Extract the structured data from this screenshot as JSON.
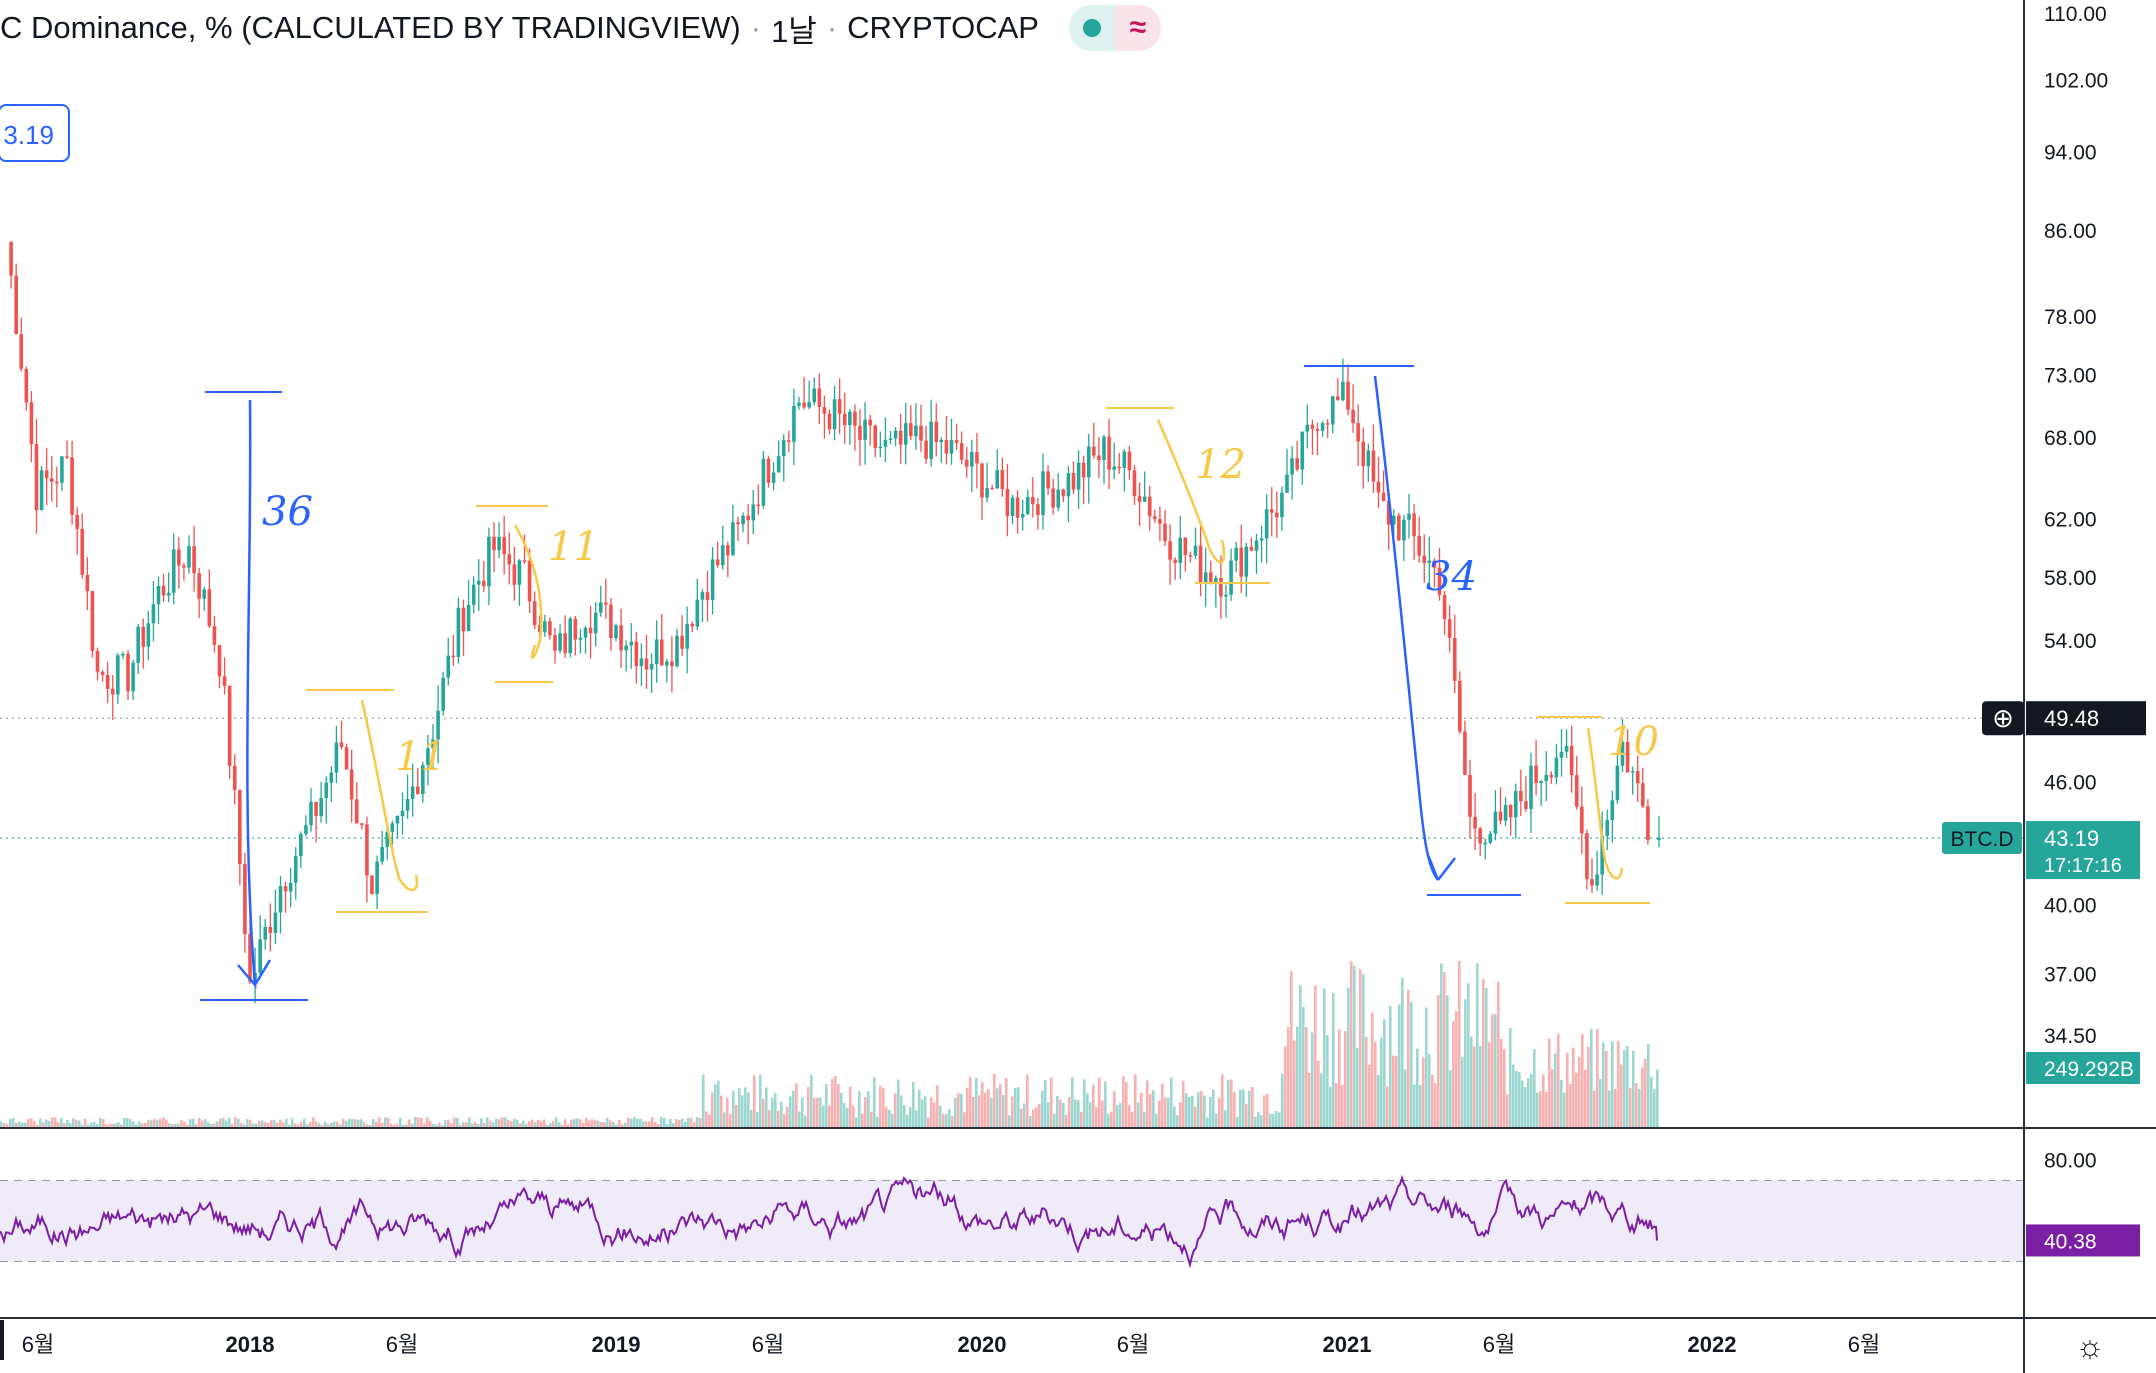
{
  "header": {
    "title": "C Dominance, % (CALCULATED BY TRADINGVIEW)",
    "interval": "1날",
    "exchange": "CRYPTOCAP"
  },
  "price_box": {
    "value": "3.19"
  },
  "crosshair": {
    "price": "49.48"
  },
  "current": {
    "symbol": "BTC.D",
    "price": "43.19",
    "countdown": "17:17:16"
  },
  "volume_label": "249.292B",
  "rsi_label": "40.38",
  "rsi_axis": [
    "80.00"
  ],
  "annotations": [
    "36",
    "11",
    "11",
    "12",
    "34",
    "10"
  ],
  "colors": {
    "up": "#26a69a",
    "down": "#ef5350",
    "rsi": "#7b1fa2",
    "blue": "#2962ff",
    "yellow": "#f7c948"
  },
  "chart_data": {
    "type": "candlestick",
    "title": "C Dominance, % (CALCULATED BY TRADINGVIEW)",
    "yscale": "log",
    "y_ticks": [
      "110.00",
      "102.00",
      "94.00",
      "86.00",
      "78.00",
      "73.00",
      "68.00",
      "62.00",
      "58.00",
      "54.00",
      "46.00",
      "40.00",
      "37.00",
      "34.50"
    ],
    "x_ticks": [
      "6월",
      "2018",
      "6월",
      "2019",
      "6월",
      "2020",
      "6월",
      "2021",
      "6월",
      "2022",
      "6월"
    ],
    "ylim": [
      33.5,
      110
    ],
    "series": [
      {
        "name": "BTC.D",
        "x": [
          "2017-05",
          "2017-06",
          "2017-07",
          "2017-08",
          "2017-09",
          "2017-10",
          "2017-11",
          "2017-12",
          "2018-01",
          "2018-02",
          "2018-03",
          "2018-04",
          "2018-05",
          "2018-06",
          "2018-07",
          "2018-08",
          "2018-09",
          "2018-10",
          "2018-11",
          "2018-12",
          "2019-01",
          "2019-02",
          "2019-03",
          "2019-04",
          "2019-05",
          "2019-06",
          "2019-07",
          "2019-08",
          "2019-09",
          "2019-10",
          "2019-11",
          "2019-12",
          "2020-01",
          "2020-02",
          "2020-03",
          "2020-04",
          "2020-05",
          "2020-06",
          "2020-07",
          "2020-08",
          "2020-09",
          "2020-10",
          "2020-11",
          "2020-12",
          "2021-01",
          "2021-02",
          "2021-03",
          "2021-04",
          "2021-05",
          "2021-06",
          "2021-07",
          "2021-08",
          "2021-09",
          "2021-10",
          "2021-11"
        ],
        "values": [
          85,
          64,
          66,
          52,
          52,
          57,
          60,
          53,
          36.5,
          41,
          44,
          48,
          41,
          44,
          49,
          56,
          60,
          58,
          53,
          56,
          55,
          53,
          54,
          58,
          61,
          66,
          71,
          70,
          68,
          67,
          68,
          67,
          65,
          63,
          64,
          65,
          67,
          65,
          61,
          59,
          58,
          61,
          64,
          70,
          71,
          63,
          61,
          58,
          44,
          43.5,
          46,
          48,
          41,
          48,
          43.19
        ]
      }
    ],
    "annotated_moves": [
      {
        "label": "36",
        "from": "2017-12",
        "to": "2018-01",
        "high": 71,
        "low": 35
      },
      {
        "label": "11",
        "from": "2018-03",
        "to": "2018-05",
        "high": 50,
        "low": 39.5
      },
      {
        "label": "11",
        "from": "2018-08",
        "to": "2018-09",
        "high": 62,
        "low": 50.5
      },
      {
        "label": "12",
        "from": "2020-06",
        "to": "2020-09",
        "high": 69,
        "low": 57
      },
      {
        "label": "34",
        "from": "2021-01",
        "to": "2021-05",
        "high": 73,
        "low": 39.5
      },
      {
        "label": "10",
        "from": "2021-08",
        "to": "2021-10",
        "high": 49,
        "low": 39
      }
    ],
    "rsi": {
      "upper": 70,
      "lower": 30,
      "last": 40.38
    }
  }
}
